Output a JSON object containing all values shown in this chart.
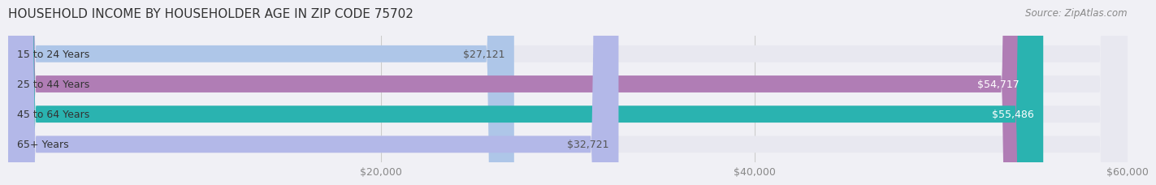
{
  "title": "HOUSEHOLD INCOME BY HOUSEHOLDER AGE IN ZIP CODE 75702",
  "source": "Source: ZipAtlas.com",
  "categories": [
    "15 to 24 Years",
    "25 to 44 Years",
    "45 to 64 Years",
    "65+ Years"
  ],
  "values": [
    27121,
    54717,
    55486,
    32721
  ],
  "bar_colors": [
    "#aec6e8",
    "#b07db5",
    "#2ab3b0",
    "#b3b8e8"
  ],
  "label_colors": [
    "#555555",
    "#ffffff",
    "#ffffff",
    "#555555"
  ],
  "xlim": [
    0,
    60000
  ],
  "xticks": [
    20000,
    40000,
    60000
  ],
  "bar_height": 0.55,
  "title_fontsize": 11,
  "source_fontsize": 8.5,
  "tick_fontsize": 9,
  "label_fontsize": 9,
  "cat_fontsize": 9,
  "background_color": "#f0f0f5",
  "bar_bg_color": "#e8e8f0"
}
